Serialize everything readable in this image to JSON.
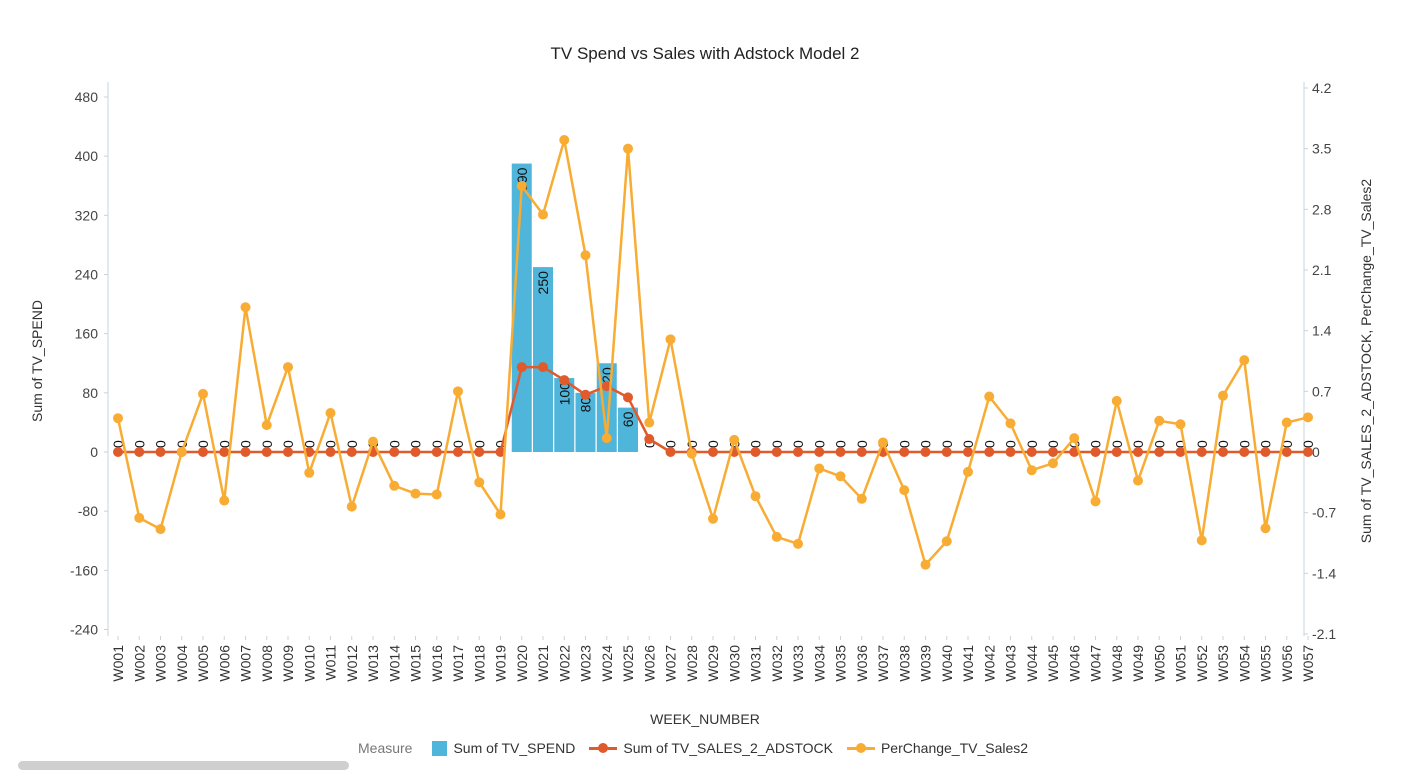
{
  "chart_data": {
    "type": "bar",
    "title": "TV Spend vs Sales with Adstock Model 2",
    "xlabel": "WEEK_NUMBER",
    "ylabel": "Sum of TV_SPEND",
    "y2label": "Sum of TV_SALES_2_ADSTOCK, PerChange_TV_Sales2",
    "ylim": [
      -240,
      480
    ],
    "yticks": [
      480,
      400,
      320,
      240,
      160,
      80,
      0,
      -80,
      -160,
      -240
    ],
    "y2lim": [
      -2.1,
      4.2
    ],
    "y2ticks": [
      "4.2",
      "3.5",
      "2.8",
      "2.1",
      "1.4",
      "0.7",
      "0",
      "-0.7",
      "-1.4",
      "-2.1"
    ],
    "categories": [
      "W001",
      "W002",
      "W003",
      "W004",
      "W005",
      "W006",
      "W007",
      "W008",
      "W009",
      "W010",
      "W011",
      "W012",
      "W013",
      "W014",
      "W015",
      "W016",
      "W017",
      "W018",
      "W019",
      "W020",
      "W021",
      "W022",
      "W023",
      "W024",
      "W025",
      "W026",
      "W027",
      "W028",
      "W029",
      "W030",
      "W031",
      "W032",
      "W033",
      "W034",
      "W035",
      "W036",
      "W037",
      "W038",
      "W039",
      "W040",
      "W041",
      "W042",
      "W043",
      "W044",
      "W045",
      "W046",
      "W047",
      "W048",
      "W049",
      "W050",
      "W051",
      "W052",
      "W053",
      "W054",
      "W055",
      "W056",
      "W057"
    ],
    "series": [
      {
        "name": "Sum of TV_SPEND",
        "kind": "bar",
        "axis": "left",
        "color": "#4fb5da",
        "values": [
          0,
          0,
          0,
          0,
          0,
          0,
          0,
          0,
          0,
          0,
          0,
          0,
          0,
          0,
          0,
          0,
          0,
          0,
          0,
          390,
          250,
          100,
          80,
          120,
          60,
          0,
          0,
          0,
          0,
          0,
          0,
          0,
          0,
          0,
          0,
          0,
          0,
          0,
          0,
          0,
          0,
          0,
          0,
          0,
          0,
          0,
          0,
          0,
          0,
          0,
          0,
          0,
          0,
          0,
          0,
          0,
          0
        ]
      },
      {
        "name": "Sum of TV_SALES_2_ADSTOCK",
        "kind": "line",
        "axis": "right",
        "color": "#e05a2b",
        "values": [
          0,
          0,
          0,
          0,
          0,
          0,
          0,
          0,
          0,
          0,
          0,
          0,
          0,
          0,
          0,
          0,
          0,
          0,
          0,
          0.98,
          0.98,
          0.83,
          0.66,
          0.76,
          0.63,
          0.15,
          0,
          0,
          0,
          0,
          0,
          0,
          0,
          0,
          0,
          0,
          0,
          0,
          0,
          0,
          0,
          0,
          0,
          0,
          0,
          0,
          0,
          0,
          0,
          0,
          0,
          0,
          0,
          0,
          0,
          0,
          0
        ]
      },
      {
        "name": "PerChange_TV_Sales2",
        "kind": "line",
        "axis": "right",
        "color": "#f8ac33",
        "values": [
          0.39,
          -0.76,
          -0.89,
          0,
          0.67,
          -0.56,
          1.67,
          0.31,
          0.98,
          -0.24,
          0.45,
          -0.63,
          0.12,
          -0.39,
          -0.48,
          -0.49,
          0.7,
          -0.35,
          -0.72,
          3.07,
          2.74,
          3.6,
          2.27,
          0.16,
          3.5,
          0.34,
          1.3,
          -0.02,
          -0.77,
          0.14,
          -0.51,
          -0.98,
          -1.06,
          -0.19,
          -0.28,
          -0.54,
          0.11,
          -0.44,
          -1.3,
          -1.03,
          -0.23,
          0.64,
          0.33,
          -0.21,
          -0.13,
          0.16,
          -0.57,
          0.59,
          -0.33,
          0.36,
          0.32,
          -1.02,
          0.65,
          1.06,
          -0.88,
          0.34,
          0.4
        ]
      }
    ],
    "legend_position": "bottom",
    "grid": false
  },
  "legend": {
    "title": "Measure",
    "items": [
      {
        "label": "Sum of TV_SPEND",
        "color": "#4fb5da"
      },
      {
        "label": "Sum of TV_SALES_2_ADSTOCK",
        "color": "#e05a2b"
      },
      {
        "label": "PerChange_TV_Sales2",
        "color": "#f8ac33"
      }
    ]
  }
}
